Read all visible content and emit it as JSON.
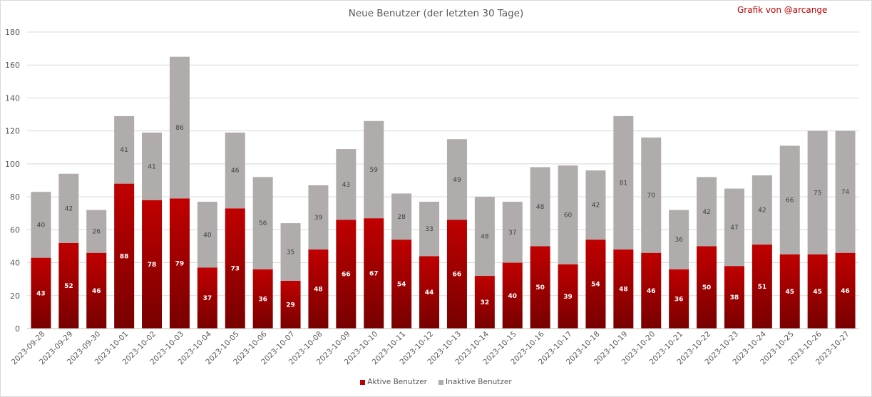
{
  "chart_data": {
    "type": "bar",
    "stacked": true,
    "title": "Neue Benutzer (der letzten 30 Tage)",
    "credit": "Grafik von @arcange",
    "ylim": [
      0,
      180
    ],
    "yticks": [
      0,
      20,
      40,
      60,
      80,
      100,
      120,
      140,
      160,
      180
    ],
    "grid": true,
    "legend_position": "bottom",
    "categories": [
      "2023-09-28",
      "2023-09-29",
      "2023-09-30",
      "2023-10-01",
      "2023-10-02",
      "2023-10-03",
      "2023-10-04",
      "2023-10-05",
      "2023-10-06",
      "2023-10-07",
      "2023-10-08",
      "2023-10-09",
      "2023-10-10",
      "2023-10-11",
      "2023-10-12",
      "2023-10-13",
      "2023-10-14",
      "2023-10-15",
      "2023-10-16",
      "2023-10-17",
      "2023-10-18",
      "2023-10-19",
      "2023-10-20",
      "2023-10-21",
      "2023-10-22",
      "2023-10-23",
      "2023-10-24",
      "2023-10-25",
      "2023-10-26",
      "2023-10-27"
    ],
    "series": [
      {
        "name": "Aktive Benutzer",
        "color": "#c00000",
        "color_dark": "#780000",
        "values": [
          43,
          52,
          46,
          88,
          78,
          79,
          37,
          73,
          36,
          29,
          48,
          66,
          67,
          54,
          44,
          66,
          32,
          40,
          50,
          39,
          54,
          48,
          46,
          36,
          50,
          38,
          51,
          45,
          45,
          46
        ]
      },
      {
        "name": "Inaktive Benutzer",
        "color": "#b0acac",
        "values": [
          40,
          42,
          26,
          41,
          41,
          86,
          40,
          46,
          56,
          35,
          39,
          43,
          59,
          28,
          33,
          49,
          48,
          37,
          48,
          60,
          42,
          81,
          70,
          36,
          42,
          47,
          42,
          66,
          75,
          74
        ]
      }
    ]
  }
}
